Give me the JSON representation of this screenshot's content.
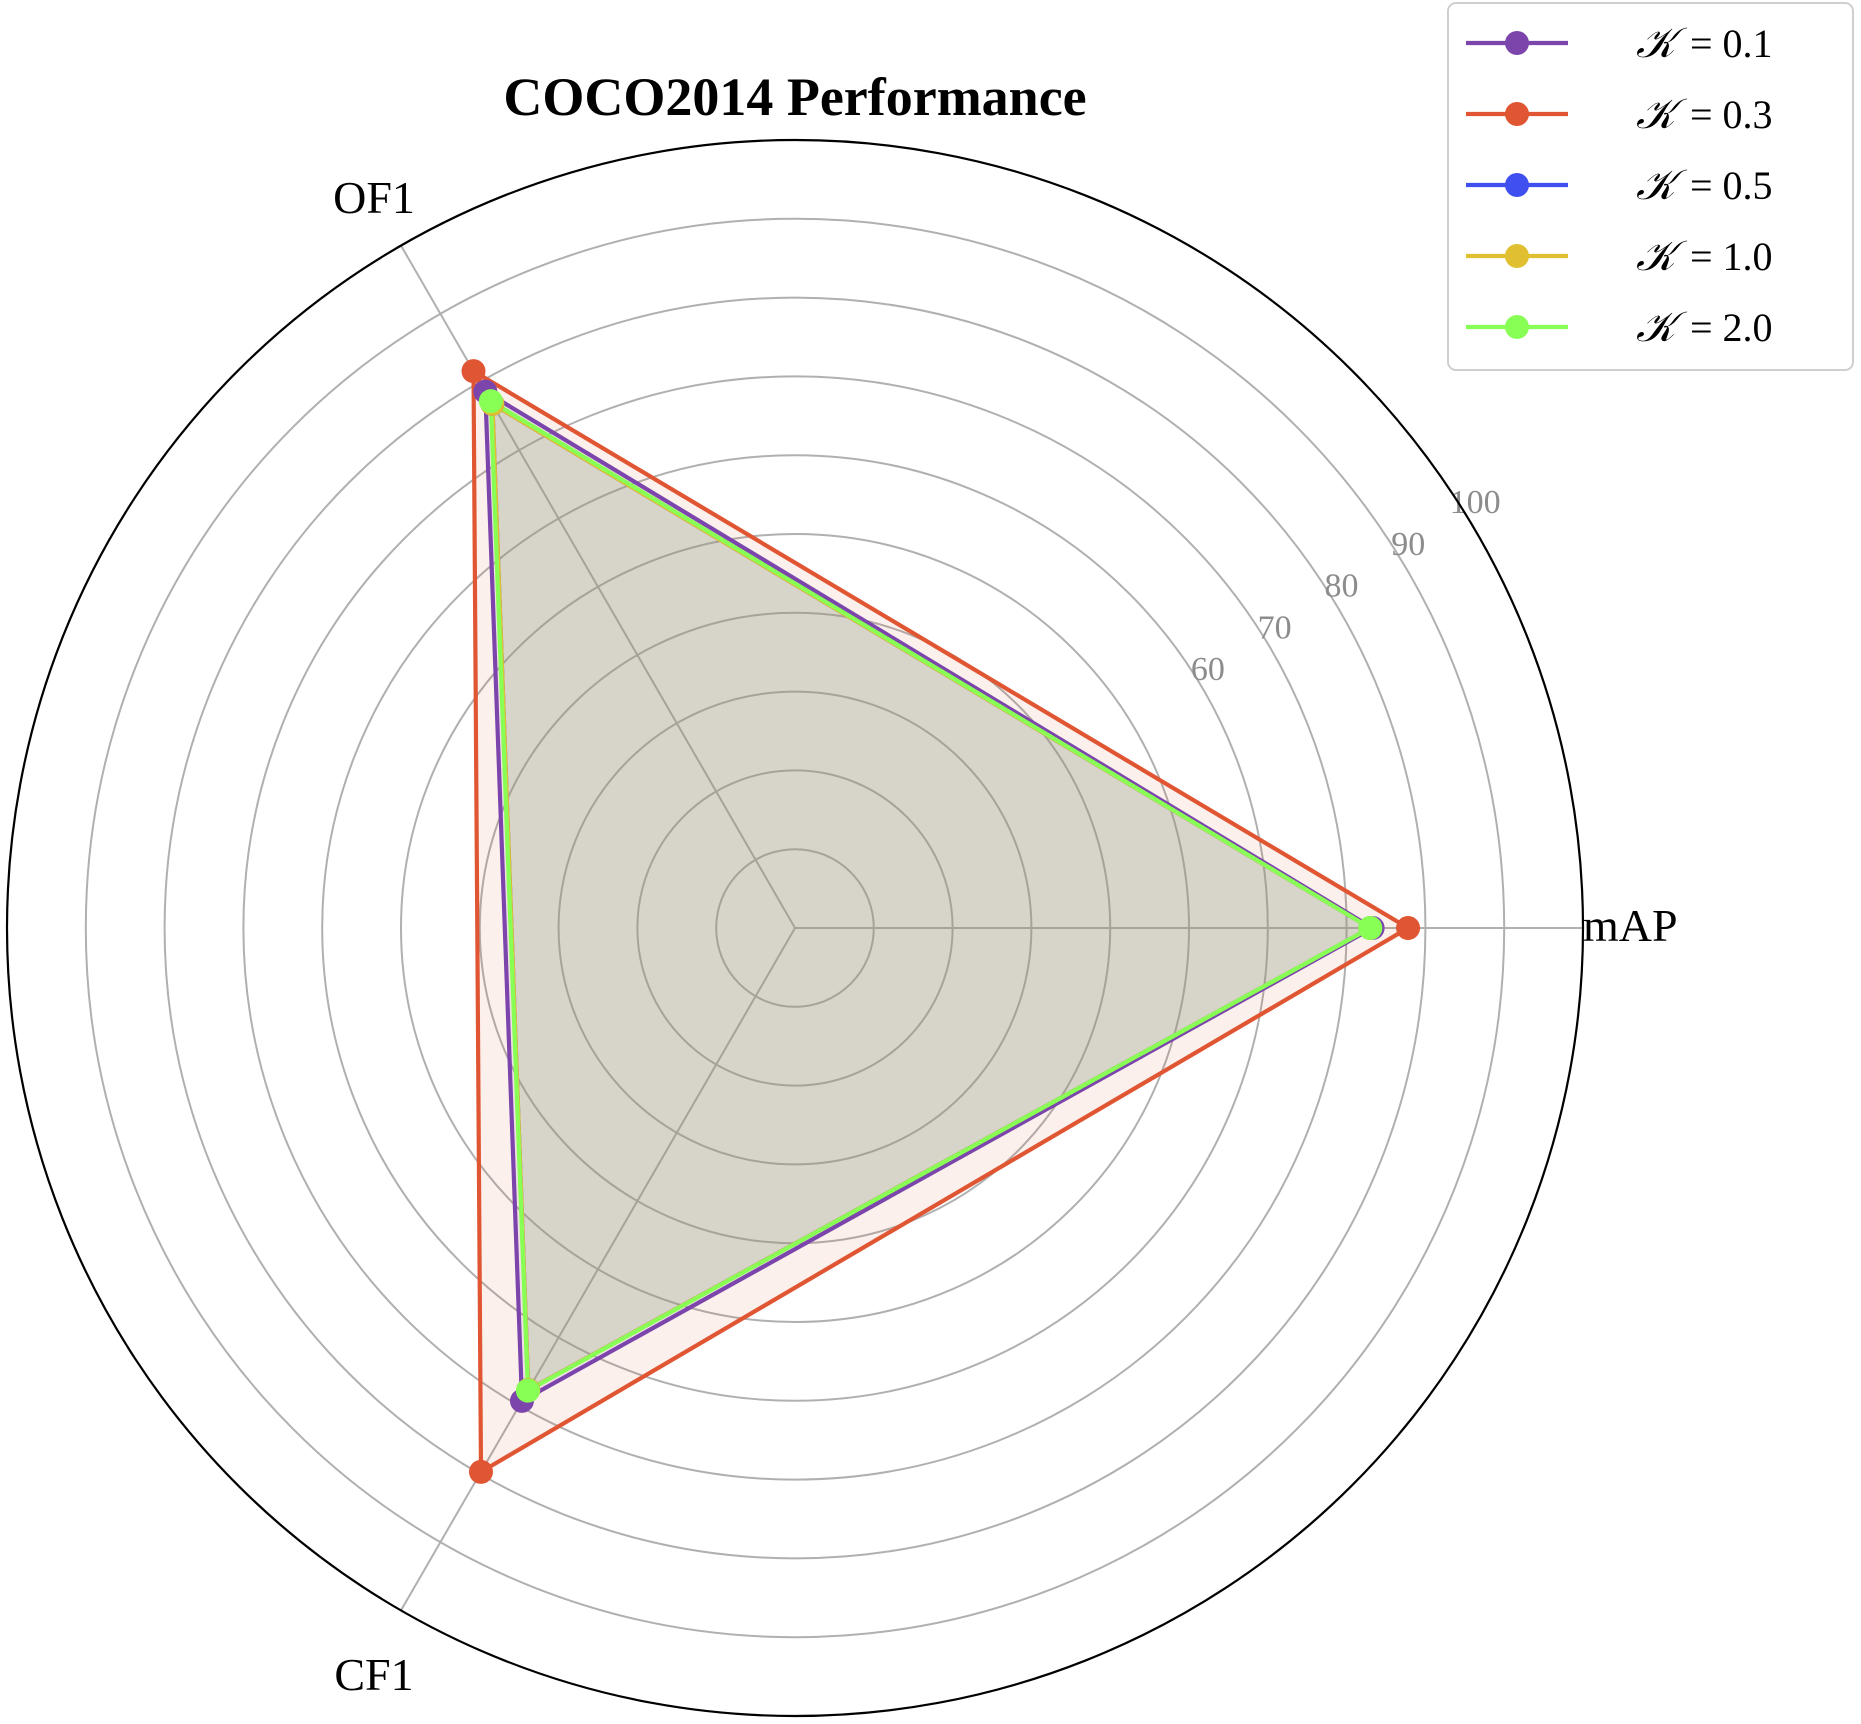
{
  "chart_data": {
    "type": "radar",
    "title": "COCO2014 Performance",
    "axes": [
      "mAP",
      "OF1",
      "CF1"
    ],
    "rlim": [
      0,
      100
    ],
    "rticks": [
      60,
      70,
      80,
      90,
      100
    ],
    "grid": true,
    "legend_position": "top-right",
    "series": [
      {
        "name": "= 0.1",
        "color": "#7b45ab",
        "values": [
          73.3,
          78.6,
          69.3
        ]
      },
      {
        "name": "= 0.3",
        "color": "#e05532",
        "values": [
          77.8,
          81.6,
          79.7
        ]
      },
      {
        "name": "= 0.5",
        "color": "#4050f0",
        "values": [
          73.0,
          76.8,
          67.7
        ]
      },
      {
        "name": "= 1.0",
        "color": "#e0c030",
        "values": [
          73.0,
          76.8,
          67.7
        ]
      },
      {
        "name": "= 2.0",
        "color": "#88ff55",
        "values": [
          73.0,
          77.2,
          67.8
        ]
      }
    ],
    "legend_symbol": "𝒦"
  }
}
